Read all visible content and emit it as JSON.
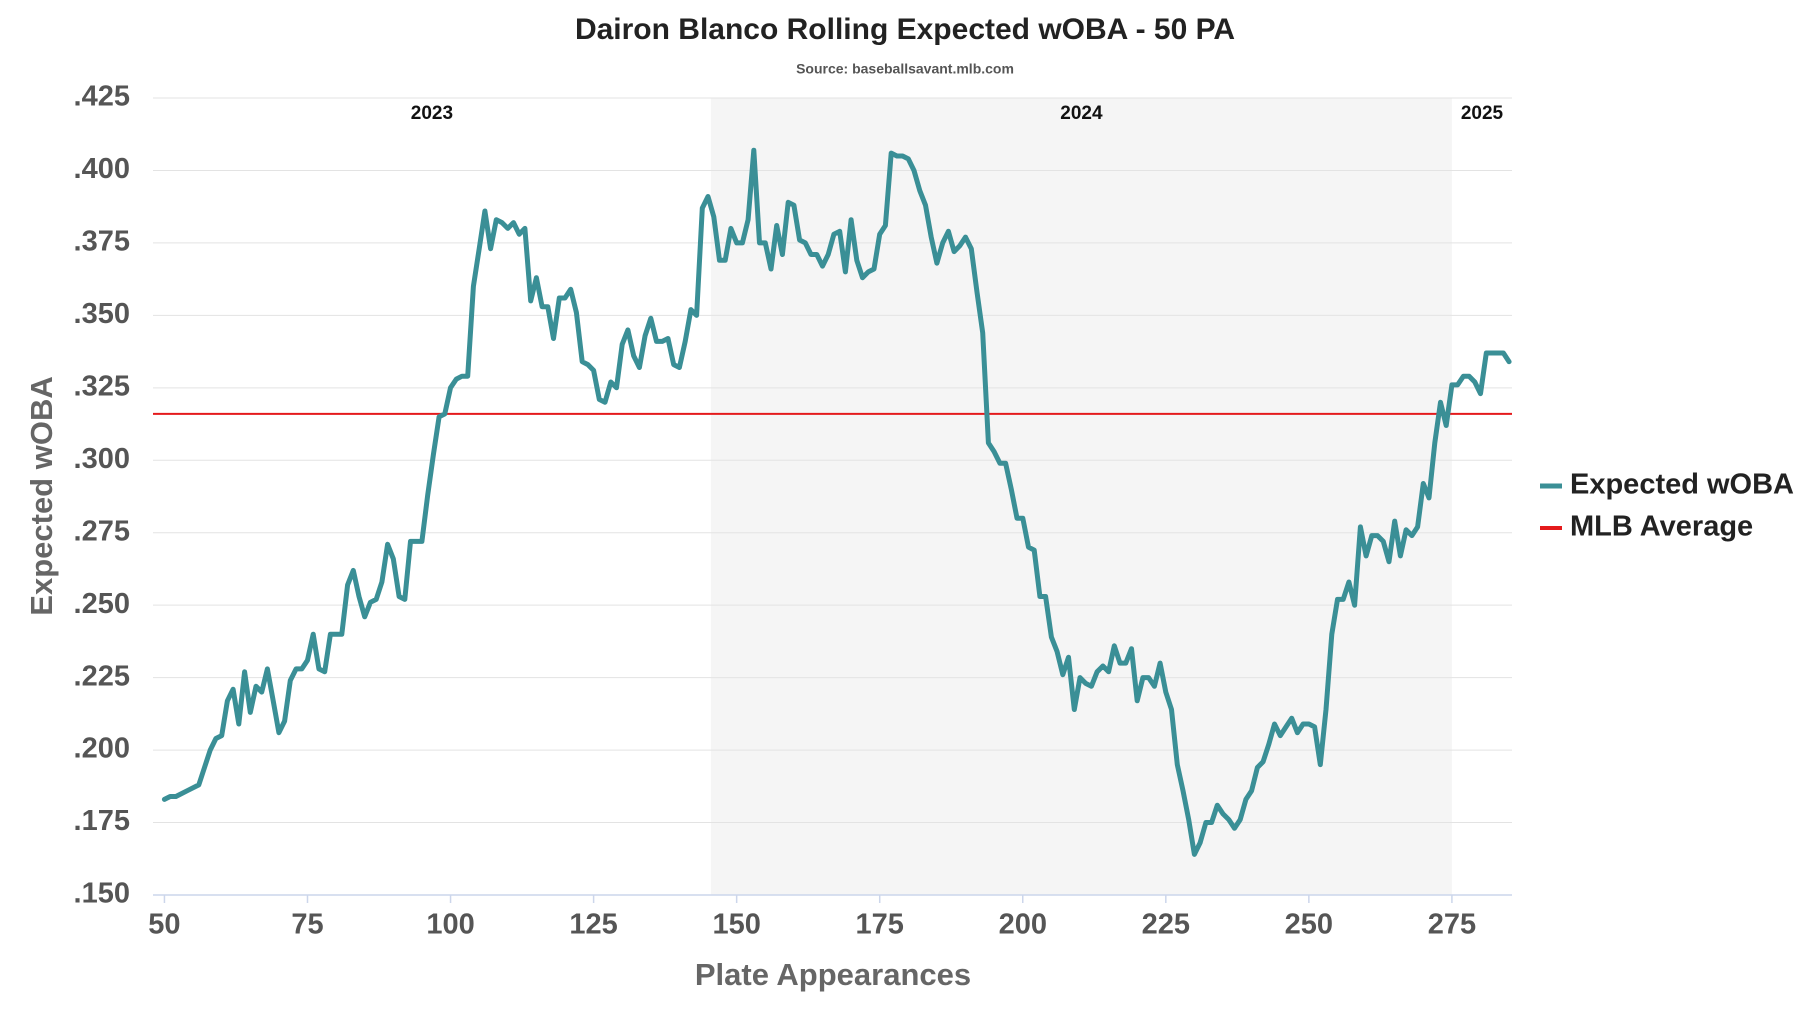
{
  "chart_data": {
    "type": "line",
    "title": "Dairon Blanco Rolling Expected wOBA - 50 PA",
    "subtitle": "Source: baseballsavant.mlb.com",
    "x_label": "Plate Appearances",
    "y_label": "Expected wOBA",
    "xlim": [
      48,
      285.5
    ],
    "ylim": [
      0.15,
      0.425
    ],
    "xticks": [
      50,
      75,
      100,
      125,
      150,
      175,
      200,
      225,
      250,
      275
    ],
    "yticks": [
      {
        "value": 0.15,
        "label": ".150"
      },
      {
        "value": 0.175,
        "label": ".175"
      },
      {
        "value": 0.2,
        "label": ".200"
      },
      {
        "value": 0.225,
        "label": ".225"
      },
      {
        "value": 0.25,
        "label": ".250"
      },
      {
        "value": 0.275,
        "label": ".275"
      },
      {
        "value": 0.3,
        "label": ".300"
      },
      {
        "value": 0.325,
        "label": ".325"
      },
      {
        "value": 0.35,
        "label": ".350"
      },
      {
        "value": 0.375,
        "label": ".375"
      },
      {
        "value": 0.4,
        "label": ".400"
      },
      {
        "value": 0.425,
        "label": ".425"
      }
    ],
    "grid": true,
    "seasons": [
      {
        "label": "2023",
        "start": 48,
        "end": 145.5,
        "shaded": false
      },
      {
        "label": "2024",
        "start": 145.5,
        "end": 275,
        "shaded": true
      },
      {
        "label": "2025",
        "start": 275,
        "end": 285.5,
        "shaded": false
      }
    ],
    "reference_line": {
      "name": "MLB Average",
      "color": "#e41a1c",
      "value": 0.316
    },
    "legend": "right",
    "x": [
      50,
      51,
      52,
      54,
      56,
      57,
      58,
      59,
      60,
      61,
      62,
      63,
      64,
      65,
      66,
      67,
      68,
      69,
      70,
      71,
      72,
      73,
      74,
      75,
      76,
      77,
      78,
      79,
      81,
      82,
      83,
      84,
      85,
      86,
      87,
      88,
      89,
      90,
      91,
      92,
      93,
      95,
      96,
      97,
      98,
      99,
      100,
      101,
      102,
      103,
      104,
      105,
      106,
      107,
      108,
      109,
      110,
      111,
      112,
      113,
      114,
      115,
      116,
      117,
      118,
      119,
      120,
      121,
      122,
      123,
      124,
      125,
      126,
      127,
      128,
      129,
      130,
      131,
      132,
      133,
      134,
      135,
      136,
      137,
      138,
      139,
      140,
      141,
      142,
      143,
      144,
      145,
      146,
      147,
      148,
      149,
      150,
      151,
      152,
      153,
      154,
      155,
      156,
      157,
      158,
      159,
      160,
      161,
      162,
      163,
      164,
      165,
      166,
      167,
      168,
      169,
      170,
      171,
      172,
      173,
      174,
      175,
      176,
      177,
      178,
      179,
      180,
      181,
      182,
      183,
      184,
      185,
      186,
      187,
      188,
      189,
      190,
      191,
      192,
      193,
      194,
      195,
      196,
      197,
      198,
      199,
      200,
      201,
      202,
      203,
      204,
      205,
      206,
      207,
      208,
      209,
      210,
      211,
      212,
      213,
      214,
      215,
      216,
      217,
      218,
      219,
      220,
      221,
      222,
      223,
      224,
      225,
      226,
      227,
      228,
      229,
      230,
      231,
      232,
      233,
      234,
      235,
      236,
      237,
      238,
      239,
      240,
      241,
      242,
      243,
      244,
      245,
      246,
      247,
      248,
      249,
      250,
      251,
      252,
      253,
      254,
      255,
      256,
      257,
      258,
      259,
      260,
      261,
      262,
      263,
      264,
      265,
      266,
      267,
      268,
      269,
      270,
      271,
      272,
      273,
      274,
      275,
      276,
      277,
      278,
      279,
      280,
      281,
      282,
      283,
      284,
      285
    ],
    "series": [
      {
        "name": "Expected wOBA",
        "color": "#3a8f96",
        "values": [
          0.183,
          0.184,
          0.184,
          0.186,
          0.188,
          0.194,
          0.2,
          0.204,
          0.205,
          0.217,
          0.221,
          0.209,
          0.227,
          0.213,
          0.222,
          0.22,
          0.228,
          0.217,
          0.206,
          0.21,
          0.224,
          0.228,
          0.228,
          0.231,
          0.24,
          0.228,
          0.227,
          0.24,
          0.24,
          0.257,
          0.262,
          0.253,
          0.246,
          0.251,
          0.252,
          0.258,
          0.271,
          0.266,
          0.253,
          0.252,
          0.272,
          0.272,
          0.288,
          0.302,
          0.315,
          0.316,
          0.325,
          0.328,
          0.329,
          0.329,
          0.36,
          0.373,
          0.386,
          0.373,
          0.383,
          0.382,
          0.38,
          0.382,
          0.378,
          0.38,
          0.355,
          0.363,
          0.353,
          0.353,
          0.342,
          0.356,
          0.356,
          0.359,
          0.351,
          0.334,
          0.333,
          0.331,
          0.321,
          0.32,
          0.327,
          0.325,
          0.34,
          0.345,
          0.336,
          0.332,
          0.343,
          0.349,
          0.341,
          0.341,
          0.342,
          0.333,
          0.332,
          0.341,
          0.352,
          0.35,
          0.387,
          0.391,
          0.384,
          0.369,
          0.369,
          0.38,
          0.375,
          0.375,
          0.383,
          0.407,
          0.375,
          0.375,
          0.366,
          0.381,
          0.371,
          0.389,
          0.388,
          0.376,
          0.375,
          0.371,
          0.371,
          0.367,
          0.371,
          0.378,
          0.379,
          0.365,
          0.383,
          0.369,
          0.363,
          0.365,
          0.366,
          0.378,
          0.381,
          0.406,
          0.405,
          0.405,
          0.404,
          0.4,
          0.393,
          0.388,
          0.377,
          0.368,
          0.375,
          0.379,
          0.372,
          0.374,
          0.377,
          0.373,
          0.358,
          0.344,
          0.306,
          0.303,
          0.299,
          0.299,
          0.29,
          0.28,
          0.28,
          0.27,
          0.269,
          0.253,
          0.253,
          0.239,
          0.234,
          0.226,
          0.232,
          0.214,
          0.225,
          0.223,
          0.222,
          0.227,
          0.229,
          0.227,
          0.236,
          0.23,
          0.23,
          0.235,
          0.217,
          0.225,
          0.225,
          0.222,
          0.23,
          0.22,
          0.214,
          0.195,
          0.186,
          0.176,
          0.164,
          0.168,
          0.175,
          0.175,
          0.181,
          0.178,
          0.176,
          0.173,
          0.176,
          0.183,
          0.186,
          0.194,
          0.196,
          0.202,
          0.209,
          0.205,
          0.208,
          0.211,
          0.206,
          0.209,
          0.209,
          0.208,
          0.195,
          0.214,
          0.24,
          0.252,
          0.252,
          0.258,
          0.25,
          0.277,
          0.267,
          0.274,
          0.274,
          0.272,
          0.265,
          0.279,
          0.267,
          0.276,
          0.274,
          0.277,
          0.292,
          0.287,
          0.306,
          0.32,
          0.312,
          0.326,
          0.326,
          0.329,
          0.329,
          0.327,
          0.323,
          0.337,
          0.337,
          0.337,
          0.337,
          0.334
        ]
      }
    ]
  }
}
